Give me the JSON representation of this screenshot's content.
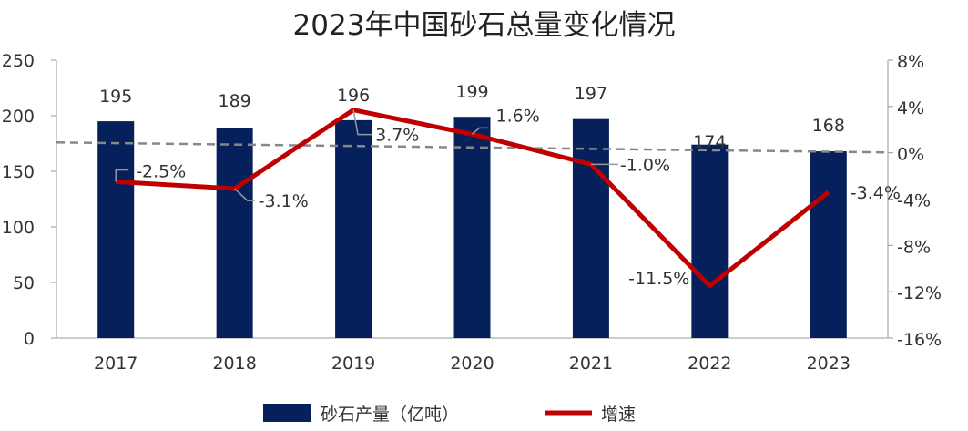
{
  "chart_data": {
    "type": "bar+line",
    "title": "2023年中国砂石总量变化情况",
    "categories": [
      "2017",
      "2018",
      "2019",
      "2020",
      "2021",
      "2022",
      "2023"
    ],
    "series": [
      {
        "name": "砂石产量（亿吨）",
        "type": "bar",
        "axis": "left",
        "color": "#06205c",
        "values": [
          195,
          189,
          196,
          199,
          197,
          174,
          168
        ]
      },
      {
        "name": "增速",
        "type": "line",
        "axis": "right",
        "color": "#c00000",
        "values": [
          -2.5,
          -3.1,
          3.7,
          1.6,
          -1.0,
          -11.5,
          -3.4
        ],
        "labels": [
          "-2.5%",
          "-3.1%",
          "3.7%",
          "1.6%",
          "-1.0%",
          "-11.5%",
          "-3.4%"
        ]
      }
    ],
    "reference_line": {
      "style": "dashed",
      "color": "#888888",
      "axis": "left",
      "start_value": 176,
      "end_value": 167
    },
    "left_axis": {
      "ylim": [
        0,
        250
      ],
      "ticks": [
        "0",
        "50",
        "100",
        "150",
        "200",
        "250"
      ]
    },
    "right_axis": {
      "ylim": [
        -16,
        8
      ],
      "ticks": [
        "-16%",
        "-12%",
        "-8%",
        "-4%",
        "0%",
        "4%",
        "8%"
      ]
    },
    "legend": {
      "placement": "bottom"
    },
    "grid": false
  }
}
